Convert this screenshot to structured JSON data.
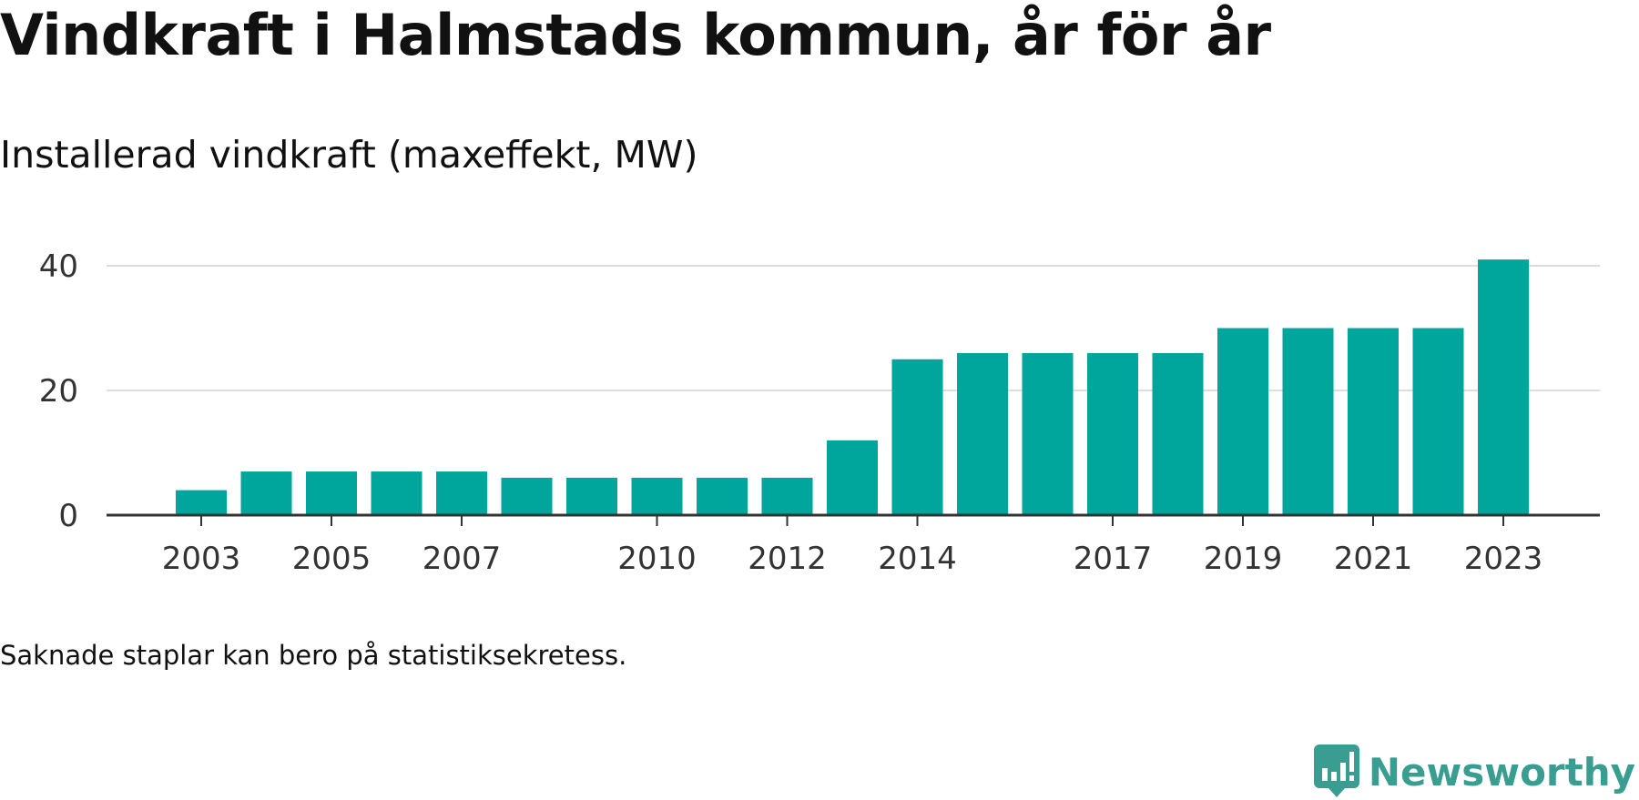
{
  "header": {
    "title": "Vindkraft i Halmstads kommun, år för år",
    "subtitle": "Installerad vindkraft (maxeffekt, MW)"
  },
  "footnote": "Saknade staplar kan bero på statistiksekretess.",
  "brand": {
    "name": "Newsworthy",
    "icon": "newsworthy-logo-icon",
    "color": "#3a9d91"
  },
  "chart_data": {
    "type": "bar",
    "title": "Installerad vindkraft (maxeffekt, MW)",
    "xlabel": "",
    "ylabel": "",
    "categories": [
      "2003",
      "2004",
      "2005",
      "2006",
      "2007",
      "2008",
      "2009",
      "2010",
      "2011",
      "2012",
      "2013",
      "2014",
      "2015",
      "2016",
      "2017",
      "2018",
      "2019",
      "2020",
      "2021",
      "2022",
      "2023"
    ],
    "values": [
      4,
      7,
      7,
      7,
      7,
      6,
      6,
      6,
      6,
      6,
      12,
      25,
      26,
      26,
      26,
      26,
      30,
      30,
      30,
      30,
      41
    ],
    "x_tick_labels": [
      "2003",
      "2005",
      "2007",
      "2010",
      "2012",
      "2014",
      "2017",
      "2019",
      "2021",
      "2023"
    ],
    "y_ticks": [
      0,
      20,
      40
    ],
    "ylim": [
      0,
      40
    ],
    "grid": true,
    "legend": "none",
    "bar_color": "#00a59b",
    "grid_color": "#dddddd",
    "axis_color": "#333333"
  }
}
